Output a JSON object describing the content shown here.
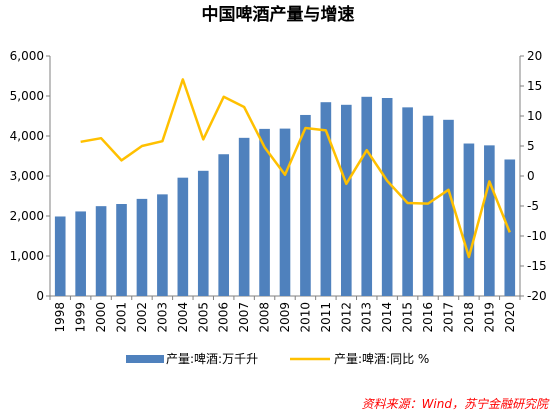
{
  "chart_data": {
    "type": "bar",
    "title": "中国啤酒产量与增速",
    "categories": [
      "1998",
      "1999",
      "2000",
      "2001",
      "2002",
      "2003",
      "2004",
      "2005",
      "2006",
      "2007",
      "2008",
      "2009",
      "2010",
      "2011",
      "2012",
      "2013",
      "2014",
      "2015",
      "2016",
      "2017",
      "2018",
      "2019",
      "2020"
    ],
    "series": [
      {
        "name": "产量:啤酒:万千升",
        "type": "bar",
        "axis": "left",
        "color": "#4f81bd",
        "values": [
          1988,
          2114,
          2246,
          2300,
          2428,
          2541,
          2958,
          3130,
          3544,
          3954,
          4178,
          4185,
          4526,
          4845,
          4780,
          4980,
          4950,
          4716,
          4507,
          4405,
          3812,
          3766,
          3413
        ]
      },
      {
        "name": "产量:啤酒:同比 %",
        "type": "line",
        "axis": "right",
        "color": "#ffc000",
        "values": [
          null,
          5.7,
          6.3,
          2.6,
          5.0,
          5.8,
          16.1,
          6.1,
          13.2,
          11.5,
          4.8,
          0.2,
          8.0,
          7.6,
          -1.3,
          4.3,
          -0.8,
          -4.5,
          -4.6,
          -2.3,
          -13.5,
          -0.9,
          -9.4
        ]
      }
    ],
    "ylim_left": [
      0,
      6000
    ],
    "yticks_left": [
      "0",
      "1,000",
      "2,000",
      "3,000",
      "4,000",
      "5,000",
      "6,000"
    ],
    "ylim_right": [
      -20,
      20
    ],
    "yticks_right": [
      "-20",
      "-15",
      "-10",
      "-5",
      "0",
      "5",
      "10",
      "15",
      "20"
    ],
    "legend_position": "bottom",
    "grid": false
  },
  "legend": {
    "bar_label": "产量:啤酒:万千升",
    "line_label": "产量:啤酒:同比 %"
  },
  "source_note": "资料来源：Wind，苏宁金融研究院",
  "colors": {
    "bar": "#4f81bd",
    "line": "#ffc000",
    "source_text": "#ff0000",
    "axis": "#808080",
    "text": "#000000"
  }
}
